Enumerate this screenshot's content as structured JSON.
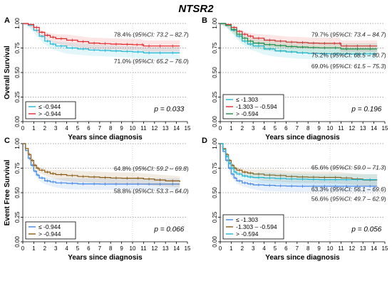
{
  "figure_title": "NTSR2",
  "chart_data": [
    {
      "panel": "A",
      "type": "line",
      "ylabel": "Overall Survival",
      "xlabel": "Years since diagnosis",
      "xlim": [
        0,
        15
      ],
      "ylim": [
        0,
        1
      ],
      "x_ticks": [
        "0",
        "1",
        "2",
        "3",
        "4",
        "5",
        "6",
        "7",
        "8",
        "9",
        "10",
        "11",
        "12",
        "13",
        "14",
        "15"
      ],
      "y_ticks": [
        "0.00",
        "0.25",
        "0.50",
        "0.75",
        "1.00"
      ],
      "p_value": "p = 0.033",
      "legend_position": "bottom-left",
      "annotations": [
        {
          "pre": "78.4% (",
          "ci": "95%CI: 73.2 – 82.7",
          "post": ")",
          "x": 8.3,
          "y": 0.865
        },
        {
          "pre": "71.0% (",
          "ci": "95%CI: 65.2 – 76.0",
          "post": ")",
          "x": 8.3,
          "y": 0.595
        }
      ],
      "series": [
        {
          "name": "≤ -0.944",
          "color": "#1ab6d6",
          "x": [
            0,
            0.5,
            1,
            1.5,
            2,
            2.5,
            3,
            4,
            5,
            6,
            7,
            8,
            9,
            10,
            11,
            12,
            13,
            14.3
          ],
          "y": [
            1.0,
            0.98,
            0.93,
            0.87,
            0.82,
            0.79,
            0.77,
            0.75,
            0.74,
            0.73,
            0.725,
            0.72,
            0.715,
            0.71,
            0.7,
            0.7,
            0.7,
            0.7
          ]
        },
        {
          "name": "> -0.944",
          "color": "#e3262a",
          "x": [
            0,
            0.5,
            1,
            1.5,
            2,
            2.5,
            3,
            4,
            5,
            6,
            7,
            8,
            9,
            10,
            10.8,
            11,
            12,
            13,
            14.3
          ],
          "y": [
            1.0,
            0.99,
            0.96,
            0.91,
            0.88,
            0.86,
            0.845,
            0.83,
            0.815,
            0.8,
            0.795,
            0.79,
            0.787,
            0.784,
            0.784,
            0.77,
            0.77,
            0.77,
            0.77
          ]
        }
      ]
    },
    {
      "panel": "B",
      "type": "line",
      "ylabel": "",
      "xlabel": "Years since diagnosis",
      "xlim": [
        0,
        15
      ],
      "ylim": [
        0,
        1
      ],
      "x_ticks": [
        "0",
        "1",
        "2",
        "3",
        "4",
        "5",
        "6",
        "7",
        "8",
        "9",
        "10",
        "11",
        "12",
        "13",
        "14",
        "15"
      ],
      "y_ticks": [
        "0.00",
        "0.25",
        "0.50",
        "0.75",
        "1.00"
      ],
      "p_value": "p = 0.196",
      "legend_position": "bottom-left",
      "annotations": [
        {
          "pre": "79.7% (",
          "ci": "95%CI: 73.4 – 84.7",
          "post": ")",
          "x": 8.3,
          "y": 0.865
        },
        {
          "pre": "75.2% (",
          "ci": "95%CI: 68.5 – 80.7",
          "post": ")",
          "x": 8.3,
          "y": 0.655
        },
        {
          "pre": "69.0% (",
          "ci": "95%CI: 61.5 – 75.3",
          "post": ")",
          "x": 8.3,
          "y": 0.545
        }
      ],
      "series": [
        {
          "name": "≤ -1.303",
          "color": "#1ab6d6",
          "x": [
            0,
            0.5,
            1,
            1.5,
            2,
            2.5,
            3,
            4,
            5,
            6,
            7,
            8,
            9,
            10,
            11,
            12,
            13,
            14.3
          ],
          "y": [
            1.0,
            0.98,
            0.93,
            0.87,
            0.82,
            0.79,
            0.77,
            0.74,
            0.72,
            0.71,
            0.7,
            0.695,
            0.692,
            0.69,
            0.69,
            0.69,
            0.69,
            0.69
          ]
        },
        {
          "name": "-1.303 – -0.594",
          "color": "#e3262a",
          "x": [
            0,
            0.5,
            1,
            1.5,
            2,
            2.5,
            3,
            4,
            5,
            6,
            7,
            8,
            9,
            10,
            10.8,
            11,
            12,
            13,
            14.3
          ],
          "y": [
            1.0,
            0.99,
            0.96,
            0.92,
            0.89,
            0.87,
            0.85,
            0.83,
            0.82,
            0.81,
            0.805,
            0.8,
            0.797,
            0.797,
            0.797,
            0.77,
            0.77,
            0.77,
            0.77
          ]
        },
        {
          "name": "> -0.594",
          "color": "#179048",
          "x": [
            0,
            0.5,
            1,
            1.5,
            2,
            2.5,
            3,
            4,
            5,
            6,
            7,
            8,
            9,
            10,
            11,
            12,
            13,
            14.3
          ],
          "y": [
            1.0,
            0.98,
            0.94,
            0.89,
            0.85,
            0.82,
            0.8,
            0.785,
            0.775,
            0.765,
            0.76,
            0.755,
            0.752,
            0.752,
            0.74,
            0.74,
            0.74,
            0.74
          ]
        }
      ]
    },
    {
      "panel": "C",
      "type": "line",
      "ylabel": "Event Free Survival",
      "xlabel": "Years since diagnosis",
      "xlim": [
        0,
        15
      ],
      "ylim": [
        0,
        1
      ],
      "x_ticks": [
        "0",
        "1",
        "2",
        "3",
        "4",
        "5",
        "6",
        "7",
        "8",
        "9",
        "10",
        "11",
        "12",
        "13",
        "14",
        "15"
      ],
      "y_ticks": [
        "0.00",
        "0.25",
        "0.50",
        "0.75",
        "1.00"
      ],
      "p_value": "p = 0.066",
      "legend_position": "bottom-left",
      "annotations": [
        {
          "pre": "64.8% (",
          "ci": "95%CI: 59.2 – 69.8",
          "post": ")",
          "x": 8.3,
          "y": 0.725
        },
        {
          "pre": "58.8% (",
          "ci": "95%CI: 53.3 – 64.0",
          "post": ")",
          "x": 8.3,
          "y": 0.495
        }
      ],
      "series": [
        {
          "name": "≤ -0.944",
          "color": "#3f84e8",
          "x": [
            0,
            0.25,
            0.5,
            0.75,
            1,
            1.25,
            1.5,
            2,
            2.5,
            3,
            4,
            5,
            6,
            7,
            8,
            9,
            10,
            11,
            12,
            13,
            14.3
          ],
          "y": [
            1.0,
            0.93,
            0.85,
            0.78,
            0.72,
            0.68,
            0.65,
            0.62,
            0.61,
            0.6,
            0.595,
            0.59,
            0.59,
            0.588,
            0.588,
            0.588,
            0.588,
            0.588,
            0.588,
            0.588,
            0.588
          ]
        },
        {
          "name": "> -0.944",
          "color": "#8a5a12",
          "x": [
            0,
            0.25,
            0.5,
            0.75,
            1,
            1.25,
            1.5,
            2,
            2.5,
            3,
            4,
            5,
            6,
            7,
            8,
            9,
            10,
            11,
            12,
            13,
            14.3
          ],
          "y": [
            1.0,
            0.95,
            0.89,
            0.83,
            0.78,
            0.75,
            0.73,
            0.71,
            0.695,
            0.685,
            0.675,
            0.665,
            0.66,
            0.655,
            0.65,
            0.648,
            0.648,
            0.64,
            0.63,
            0.62,
            0.61
          ]
        }
      ]
    },
    {
      "panel": "D",
      "type": "line",
      "ylabel": "",
      "xlabel": "Years since diagnosis",
      "xlim": [
        0,
        15
      ],
      "ylim": [
        0,
        1
      ],
      "x_ticks": [
        "0",
        "1",
        "2",
        "3",
        "4",
        "5",
        "6",
        "7",
        "8",
        "9",
        "10",
        "11",
        "12",
        "13",
        "14",
        "15"
      ],
      "y_ticks": [
        "0.00",
        "0.25",
        "0.50",
        "0.75",
        "1.00"
      ],
      "p_value": "p = 0.056",
      "legend_position": "bottom-left",
      "annotations": [
        {
          "pre": "65.6% (",
          "ci": "95%CI: 59.0 – 71.3",
          "post": ")",
          "x": 8.3,
          "y": 0.735
        },
        {
          "pre": "63.3% (",
          "ci": "95%CI: 56.1 – 69.6",
          "post": ")",
          "x": 8.3,
          "y": 0.515
        },
        {
          "pre": "56.6% (",
          "ci": "95%CI: 49.7 – 62.9",
          "post": ")",
          "x": 8.3,
          "y": 0.415
        }
      ],
      "series": [
        {
          "name": "≤ -1.303",
          "color": "#3f84e8",
          "x": [
            0,
            0.25,
            0.5,
            0.75,
            1,
            1.25,
            1.5,
            2,
            2.5,
            3,
            4,
            5,
            6,
            7,
            8,
            9,
            10,
            11,
            12,
            13,
            14.3
          ],
          "y": [
            1.0,
            0.92,
            0.83,
            0.75,
            0.69,
            0.65,
            0.62,
            0.6,
            0.59,
            0.58,
            0.575,
            0.57,
            0.568,
            0.566,
            0.566,
            0.566,
            0.566,
            0.566,
            0.566,
            0.566,
            0.566
          ]
        },
        {
          "name": "-1.303 – -0.594",
          "color": "#8a5a12",
          "x": [
            0,
            0.25,
            0.5,
            0.75,
            1,
            1.25,
            1.5,
            2,
            2.5,
            3,
            4,
            5,
            6,
            7,
            8,
            9,
            10,
            11,
            12,
            13,
            14.3
          ],
          "y": [
            1.0,
            0.95,
            0.89,
            0.83,
            0.78,
            0.75,
            0.73,
            0.71,
            0.7,
            0.69,
            0.68,
            0.675,
            0.665,
            0.66,
            0.658,
            0.656,
            0.656,
            0.65,
            0.64,
            0.63,
            0.63
          ]
        },
        {
          "name": "> -0.594",
          "color": "#1ab6d6",
          "x": [
            0,
            0.25,
            0.5,
            0.75,
            1,
            1.25,
            1.5,
            2,
            2.5,
            3,
            4,
            5,
            6,
            7,
            8,
            9,
            10,
            11,
            12,
            13,
            14.3
          ],
          "y": [
            1.0,
            0.94,
            0.87,
            0.8,
            0.75,
            0.71,
            0.69,
            0.67,
            0.66,
            0.655,
            0.65,
            0.645,
            0.64,
            0.638,
            0.635,
            0.633,
            0.633,
            0.633,
            0.633,
            0.633,
            0.633
          ]
        }
      ]
    }
  ]
}
